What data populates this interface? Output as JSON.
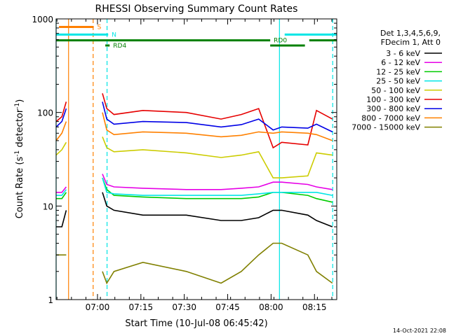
{
  "chart_data": {
    "type": "line",
    "title": "RHESSI Observing Summary Count Rates",
    "xlabel": "Start Time (10-Jul-08 06:45:42)",
    "ylabel": {
      "prefix": "Count Rate (s",
      "sup": "-1",
      "mid": " detector",
      "sup2": "-1",
      "suffix": ")"
    },
    "x_scale": "time",
    "x_unit": "minutes since 06:45:42",
    "xlim": [
      0,
      97
    ],
    "x_ticks": [
      {
        "label": "07:00",
        "value": 14.3
      },
      {
        "label": "07:15",
        "value": 29.3
      },
      {
        "label": "07:30",
        "value": 44.3
      },
      {
        "label": "07:45",
        "value": 59.3
      },
      {
        "label": "08:00",
        "value": 74.3
      },
      {
        "label": "08:15",
        "value": 89.3
      }
    ],
    "y_scale": "log",
    "ylim": [
      1,
      1000
    ],
    "y_ticks": [
      {
        "label": "1",
        "value": 1
      },
      {
        "label": "10",
        "value": 10
      },
      {
        "label": "100",
        "value": 100
      },
      {
        "label": "1000",
        "value": 1000
      }
    ],
    "legend": {
      "placement": "right",
      "header": [
        "Det 1,3,4,5,6,9,",
        "FDecim 1, Att 0"
      ]
    },
    "series": [
      {
        "name": "3 - 6 keV",
        "color": "#000000",
        "x": [
          0,
          2,
          3.5,
          5,
          14,
          16,
          17.5,
          20,
          30,
          45,
          57,
          64,
          70,
          75,
          78,
          87,
          90,
          95.5
        ],
        "y": [
          6,
          6,
          9,
          null,
          null,
          14,
          10,
          9,
          8,
          8,
          7,
          7,
          7.5,
          9,
          9,
          8,
          7,
          6
        ]
      },
      {
        "name": "6 - 12 keV",
        "color": "#e600e6",
        "x": [
          0,
          2,
          3.5,
          5,
          14,
          16,
          17.5,
          20,
          30,
          45,
          57,
          64,
          70,
          75,
          78,
          87,
          90,
          95.5
        ],
        "y": [
          14,
          14,
          16,
          null,
          null,
          22,
          17,
          16,
          15.5,
          15,
          15,
          15.5,
          16,
          18,
          18,
          17,
          16,
          15
        ]
      },
      {
        "name": "12 - 25 keV",
        "color": "#00cc00",
        "x": [
          0,
          2,
          3.5,
          5,
          14,
          16,
          17.5,
          20,
          30,
          45,
          57,
          64,
          70,
          75,
          78,
          87,
          90,
          95.5
        ],
        "y": [
          12,
          12,
          14,
          null,
          null,
          20,
          15,
          13,
          12.5,
          12,
          12,
          12,
          12.5,
          14,
          14,
          13,
          12,
          11
        ]
      },
      {
        "name": "25 - 50 keV",
        "color": "#00e6e6",
        "x": [
          0,
          2,
          3.5,
          5,
          14,
          16,
          17.5,
          20,
          30,
          45,
          57,
          64,
          70,
          75,
          78,
          87,
          90,
          95.5
        ],
        "y": [
          13,
          13,
          15,
          null,
          null,
          20,
          14,
          13.5,
          13,
          13,
          13,
          13,
          13.5,
          14,
          14,
          14,
          14,
          13
        ]
      },
      {
        "name": "50 - 100 keV",
        "color": "#cccc00",
        "x": [
          0,
          2,
          3.5,
          5,
          14,
          16,
          17.5,
          20,
          30,
          45,
          57,
          64,
          70,
          75,
          78,
          87,
          90,
          95.5
        ],
        "y": [
          35,
          40,
          48,
          null,
          null,
          55,
          42,
          38,
          40,
          37,
          33,
          35,
          38,
          20,
          20,
          21,
          37,
          35
        ]
      },
      {
        "name": "100 - 300 keV",
        "color": "#e60000",
        "x": [
          0,
          2,
          3.5,
          5,
          14,
          16,
          17.5,
          20,
          30,
          45,
          57,
          64,
          70,
          75,
          78,
          87,
          90,
          95.5
        ],
        "y": [
          80,
          90,
          130,
          null,
          null,
          160,
          110,
          95,
          105,
          100,
          85,
          95,
          110,
          42,
          48,
          45,
          105,
          85
        ]
      },
      {
        "name": "300 - 800 keV",
        "color": "#0000e6",
        "x": [
          0,
          2,
          3.5,
          5,
          14,
          16,
          17.5,
          20,
          30,
          45,
          57,
          64,
          70,
          75,
          78,
          87,
          90,
          95.5
        ],
        "y": [
          70,
          80,
          110,
          null,
          null,
          130,
          85,
          75,
          80,
          78,
          70,
          74,
          85,
          65,
          70,
          68,
          75,
          62
        ]
      },
      {
        "name": "800 - 7000 keV",
        "color": "#ff8000",
        "x": [
          0,
          2,
          3.5,
          5,
          14,
          16,
          17.5,
          20,
          30,
          45,
          57,
          64,
          70,
          75,
          78,
          87,
          90,
          95.5
        ],
        "y": [
          50,
          60,
          80,
          null,
          null,
          100,
          65,
          58,
          62,
          60,
          55,
          57,
          62,
          60,
          62,
          60,
          58,
          50
        ]
      },
      {
        "name": "7000 - 15000 keV",
        "color": "#808000",
        "x": [
          0,
          2,
          3.5,
          5,
          14,
          16,
          17.5,
          20,
          30,
          45,
          57,
          64,
          70,
          75,
          78,
          87,
          90,
          95.5
        ],
        "y": [
          3,
          3,
          3,
          null,
          null,
          2,
          1.5,
          2,
          2.5,
          2,
          1.5,
          2,
          3,
          4,
          4,
          3,
          2,
          1.5
        ]
      }
    ],
    "flag_bars": [
      {
        "label": "S",
        "color": "#ff8000",
        "level": 820,
        "start": 1,
        "end": 13
      },
      {
        "label": "N",
        "color": "#00e6e6",
        "level": 680,
        "start": 0,
        "end": 18
      },
      {
        "label": "",
        "color": "#00e6e6",
        "level": 680,
        "start": 79,
        "end": 97
      },
      {
        "label": "RD0",
        "color": "#008000",
        "level": 590,
        "start": 0,
        "end": 74
      },
      {
        "label": "",
        "color": "#008000",
        "level": 590,
        "start": 87.5,
        "end": 97
      },
      {
        "label": "RD4",
        "color": "#008000",
        "level": 520,
        "start": 17,
        "end": 18.5
      },
      {
        "label": "",
        "color": "#008000",
        "level": 520,
        "start": 74,
        "end": 86
      }
    ],
    "vertical_markers": [
      {
        "x": 0,
        "color": "#00e6e6",
        "style": "solid"
      },
      {
        "x": 4.3,
        "color": "#ff8000",
        "style": "solid"
      },
      {
        "x": 12.8,
        "color": "#ff8000",
        "style": "dashed"
      },
      {
        "x": 17.6,
        "color": "#00e6e6",
        "style": "dashed"
      },
      {
        "x": 77.2,
        "color": "#00e6e6",
        "style": "solid"
      },
      {
        "x": 95.6,
        "color": "#00e6e6",
        "style": "dashed"
      }
    ]
  },
  "footer": {
    "timestamp": "14-Oct-2021 22:08"
  }
}
